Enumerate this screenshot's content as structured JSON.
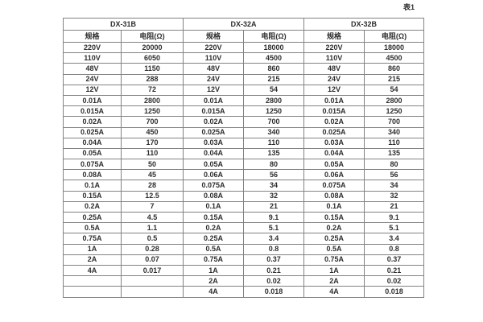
{
  "caption": "表1",
  "table": {
    "groups": [
      {
        "name": "DX-31B",
        "headers": [
          "规格",
          "电阻(Ω)"
        ]
      },
      {
        "name": "DX-32A",
        "headers": [
          "规格",
          "电阻(Ω)"
        ]
      },
      {
        "name": "DX-32B",
        "headers": [
          "规格",
          "电阻(Ω)"
        ]
      }
    ],
    "rows": [
      [
        "220V",
        "20000",
        "220V",
        "18000",
        "220V",
        "18000"
      ],
      [
        "110V",
        "6050",
        "110V",
        "4500",
        "110V",
        "4500"
      ],
      [
        "48V",
        "1150",
        "48V",
        "860",
        "48V",
        "860"
      ],
      [
        "24V",
        "288",
        "24V",
        "215",
        "24V",
        "215"
      ],
      [
        "12V",
        "72",
        "12V",
        "54",
        "12V",
        "54"
      ],
      [
        "0.01A",
        "2800",
        "0.01A",
        "2800",
        "0.01A",
        "2800"
      ],
      [
        "0.015A",
        "1250",
        "0.015A",
        "1250",
        "0.015A",
        "1250"
      ],
      [
        "0.02A",
        "700",
        "0.02A",
        "700",
        "0.02A",
        "700"
      ],
      [
        "0.025A",
        "450",
        "0.025A",
        "340",
        "0.025A",
        "340"
      ],
      [
        "0.04A",
        "170",
        "0.03A",
        "110",
        "0.03A",
        "110"
      ],
      [
        "0.05A",
        "110",
        "0.04A",
        "135",
        "0.04A",
        "135"
      ],
      [
        "0.075A",
        "50",
        "0.05A",
        "80",
        "0.05A",
        "80"
      ],
      [
        "0.08A",
        "45",
        "0.06A",
        "56",
        "0.06A",
        "56"
      ],
      [
        "0.1A",
        "28",
        "0.075A",
        "34",
        "0.075A",
        "34"
      ],
      [
        "0.15A",
        "12.5",
        "0.08A",
        "32",
        "0.08A",
        "32"
      ],
      [
        "0.2A",
        "7",
        "0.1A",
        "21",
        "0.1A",
        "21"
      ],
      [
        "0.25A",
        "4.5",
        "0.15A",
        "9.1",
        "0.15A",
        "9.1"
      ],
      [
        "0.5A",
        "1.1",
        "0.2A",
        "5.1",
        "0.2A",
        "5.1"
      ],
      [
        "0.75A",
        "0.5",
        "0.25A",
        "3.4",
        "0.25A",
        "3.4"
      ],
      [
        "1A",
        "0.28",
        "0.5A",
        "0.8",
        "0.5A",
        "0.8"
      ],
      [
        "2A",
        "0.07",
        "0.75A",
        "0.37",
        "0.75A",
        "0.37"
      ],
      [
        "4A",
        "0.017",
        "1A",
        "0.21",
        "1A",
        "0.21"
      ],
      [
        "",
        "",
        "2A",
        "0.02",
        "2A",
        "0.02"
      ],
      [
        "",
        "",
        "4A",
        "0.018",
        "4A",
        "0.018"
      ]
    ]
  }
}
